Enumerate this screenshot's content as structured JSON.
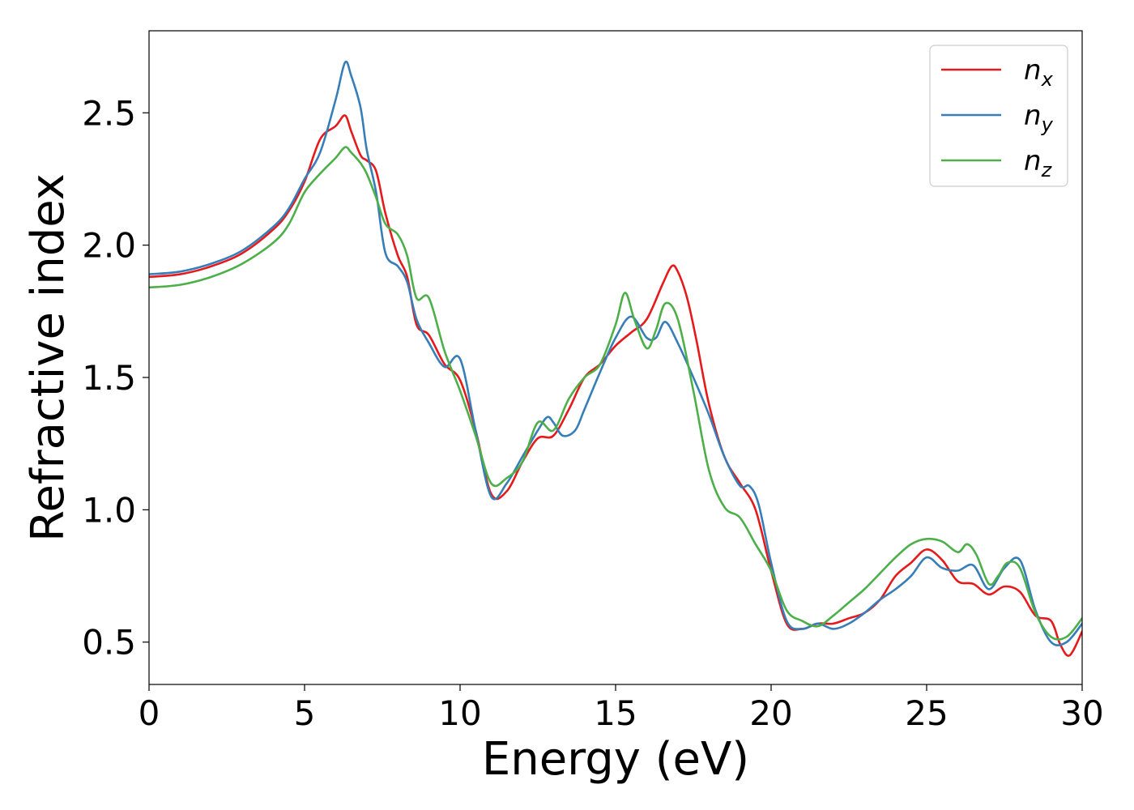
{
  "chart_data": {
    "type": "line",
    "xlabel": "Energy (eV)",
    "ylabel": "Refractive index",
    "xlim": [
      0,
      30
    ],
    "ylim": [
      0.34,
      2.81
    ],
    "xticks": [
      0,
      5,
      10,
      15,
      20,
      25,
      30
    ],
    "yticks": [
      0.5,
      1.0,
      1.5,
      2.0,
      2.5
    ],
    "xtick_labels": [
      "0",
      "5",
      "10",
      "15",
      "20",
      "25",
      "30"
    ],
    "ytick_labels": [
      "0.5",
      "1.0",
      "1.5",
      "2.0",
      "2.5"
    ],
    "grid": false,
    "legend_position": "top-right",
    "series": [
      {
        "name": "n_x",
        "label_main": "n",
        "label_sub": "x",
        "color": "#e41a1c",
        "x": [
          0,
          1,
          2,
          3,
          4,
          4.5,
          5,
          5.5,
          6,
          6.3,
          6.5,
          6.8,
          7,
          7.3,
          7.6,
          8,
          8.3,
          8.6,
          9,
          9.5,
          10,
          10.5,
          11,
          11.5,
          12,
          12.5,
          13,
          13.5,
          14,
          14.5,
          15,
          15.5,
          16,
          16.5,
          16.8,
          17,
          17.3,
          17.6,
          18,
          18.5,
          19,
          19.5,
          20,
          20.5,
          21,
          21.5,
          22,
          22.5,
          23,
          23.5,
          24,
          24.5,
          25,
          25.5,
          26,
          26.5,
          27,
          27.5,
          28,
          28.5,
          29,
          29.3,
          29.6,
          30
        ],
        "y": [
          1.88,
          1.89,
          1.92,
          1.97,
          2.06,
          2.13,
          2.24,
          2.4,
          2.45,
          2.49,
          2.43,
          2.34,
          2.32,
          2.28,
          2.12,
          1.96,
          1.88,
          1.7,
          1.66,
          1.55,
          1.49,
          1.3,
          1.06,
          1.07,
          1.18,
          1.27,
          1.28,
          1.38,
          1.5,
          1.55,
          1.62,
          1.67,
          1.72,
          1.85,
          1.92,
          1.9,
          1.8,
          1.64,
          1.4,
          1.2,
          1.1,
          1.0,
          0.77,
          0.57,
          0.55,
          0.57,
          0.57,
          0.59,
          0.61,
          0.66,
          0.75,
          0.8,
          0.85,
          0.81,
          0.73,
          0.72,
          0.68,
          0.71,
          0.69,
          0.6,
          0.58,
          0.49,
          0.45,
          0.54
        ]
      },
      {
        "name": "n_y",
        "label_main": "n",
        "label_sub": "y",
        "color": "#377eb8",
        "x": [
          0,
          1,
          2,
          3,
          4,
          4.5,
          5,
          5.5,
          6,
          6.3,
          6.5,
          6.8,
          7,
          7.3,
          7.6,
          8,
          8.3,
          8.6,
          9,
          9.5,
          10,
          10.5,
          11,
          11.5,
          12,
          12.5,
          12.8,
          13,
          13.3,
          13.7,
          14,
          14.5,
          15,
          15.5,
          16,
          16.3,
          16.6,
          17,
          17.5,
          18,
          18.5,
          19,
          19.3,
          19.6,
          20,
          20.5,
          21,
          21.5,
          22,
          22.5,
          23,
          23.5,
          24,
          24.5,
          25,
          25.5,
          26,
          26.5,
          27,
          27.5,
          28,
          28.5,
          29,
          29.5,
          30
        ],
        "y": [
          1.89,
          1.9,
          1.93,
          1.98,
          2.07,
          2.14,
          2.25,
          2.35,
          2.55,
          2.69,
          2.64,
          2.52,
          2.36,
          2.2,
          1.97,
          1.92,
          1.86,
          1.72,
          1.63,
          1.54,
          1.57,
          1.3,
          1.05,
          1.1,
          1.2,
          1.3,
          1.35,
          1.33,
          1.28,
          1.3,
          1.38,
          1.52,
          1.65,
          1.73,
          1.65,
          1.65,
          1.71,
          1.63,
          1.5,
          1.36,
          1.2,
          1.09,
          1.09,
          1.02,
          0.8,
          0.58,
          0.55,
          0.57,
          0.55,
          0.57,
          0.61,
          0.66,
          0.7,
          0.75,
          0.82,
          0.78,
          0.77,
          0.79,
          0.7,
          0.78,
          0.81,
          0.62,
          0.5,
          0.5,
          0.57
        ]
      },
      {
        "name": "n_z",
        "label_main": "n",
        "label_sub": "z",
        "color": "#4daf4a",
        "x": [
          0,
          1,
          2,
          3,
          4,
          4.5,
          5,
          5.5,
          6,
          6.3,
          6.5,
          6.8,
          7,
          7.3,
          7.6,
          8,
          8.3,
          8.6,
          9,
          9.5,
          10,
          10.5,
          11,
          11.5,
          12,
          12.5,
          13,
          13.5,
          14,
          14.5,
          15,
          15.3,
          15.6,
          16,
          16.3,
          16.6,
          17,
          17.5,
          18,
          18.5,
          19,
          19.5,
          20,
          20.5,
          21,
          21.5,
          22,
          22.5,
          23,
          23.5,
          24,
          24.5,
          25,
          25.5,
          26,
          26.3,
          26.6,
          27,
          27.3,
          27.6,
          28,
          28.5,
          29,
          29.5,
          30
        ],
        "y": [
          1.84,
          1.85,
          1.88,
          1.93,
          2.01,
          2.08,
          2.2,
          2.27,
          2.33,
          2.37,
          2.35,
          2.31,
          2.27,
          2.18,
          2.08,
          2.04,
          1.96,
          1.8,
          1.8,
          1.6,
          1.45,
          1.28,
          1.1,
          1.12,
          1.18,
          1.33,
          1.3,
          1.42,
          1.5,
          1.55,
          1.7,
          1.82,
          1.72,
          1.61,
          1.68,
          1.78,
          1.72,
          1.45,
          1.15,
          1.01,
          0.97,
          0.87,
          0.77,
          0.62,
          0.58,
          0.56,
          0.6,
          0.65,
          0.7,
          0.76,
          0.82,
          0.87,
          0.89,
          0.88,
          0.84,
          0.87,
          0.83,
          0.72,
          0.75,
          0.8,
          0.78,
          0.61,
          0.52,
          0.52,
          0.59
        ]
      }
    ]
  }
}
